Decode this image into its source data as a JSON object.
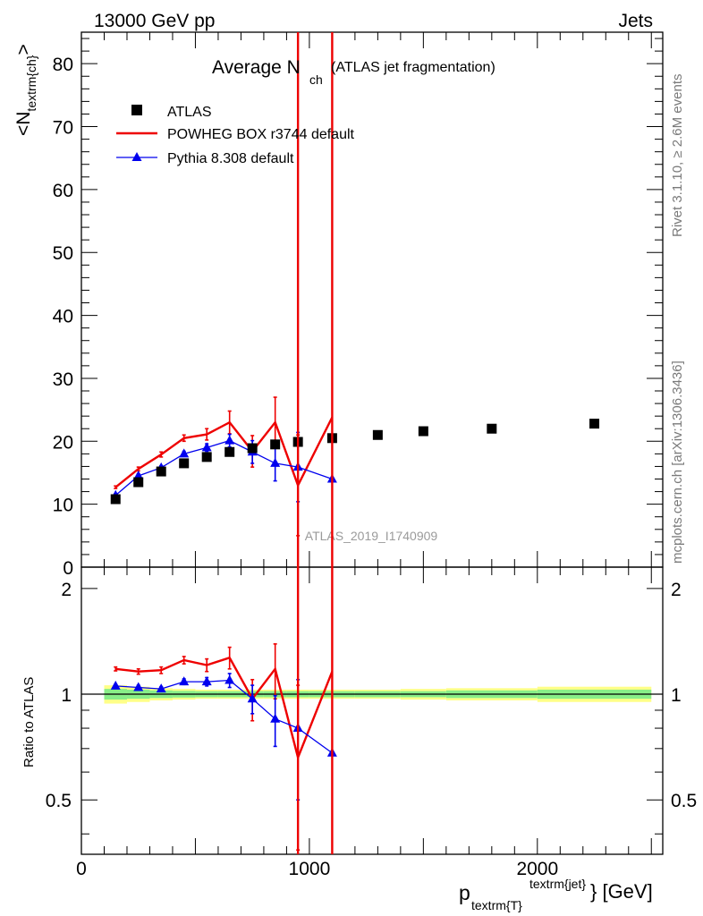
{
  "header": {
    "left": "13000 GeV pp",
    "right": "Jets"
  },
  "side_text": {
    "rivet": "Rivet 3.1.10, ≥ 2.6M events",
    "mcplots": "mcplots.cern.ch [arXiv:1306.3436]"
  },
  "watermark": "ATLAS_2019_I1740909",
  "chart_data": {
    "type": "scatter",
    "title_main": "Average N",
    "title_sub": "ch",
    "title_paren": "(ATLAS jet fragmentation)",
    "ylabel_main": "<N",
    "ylabel_sub": "textrm{ch}",
    "ylabel_close": ">",
    "ratio_ylabel": "Ratio to ATLAS",
    "xlabel_main": "p",
    "xlabel_sub": "textrm{T}",
    "xlabel_sup": "textrm{jet}",
    "xlabel_unit": "} [GeV]",
    "xlim": [
      0,
      2550
    ],
    "ylim": [
      0,
      85
    ],
    "ratio_ylim": [
      0.35,
      2.3
    ],
    "x_ticks": [
      0,
      1000,
      2000
    ],
    "x_tick_labels": [
      "0",
      "1000",
      "2000"
    ],
    "y_ticks": [
      0,
      10,
      20,
      30,
      40,
      50,
      60,
      70,
      80
    ],
    "y_tick_labels": [
      "0",
      "10",
      "20",
      "30",
      "40",
      "50",
      "60",
      "70",
      "80"
    ],
    "ratio_ticks": [
      0.5,
      1,
      2
    ],
    "ratio_tick_labels": [
      "0.5",
      "1",
      "2"
    ],
    "legend_position": "top-left",
    "series": [
      {
        "name": "ATLAS",
        "color": "#000000",
        "marker": "square",
        "x": [
          150,
          250,
          350,
          450,
          550,
          650,
          750,
          850,
          950,
          1100,
          1300,
          1500,
          1800,
          2250
        ],
        "y": [
          10.8,
          13.5,
          15.2,
          16.5,
          17.5,
          18.3,
          18.9,
          19.5,
          19.9,
          20.5,
          21.0,
          21.6,
          22.0,
          22.8
        ],
        "bin_low": [
          100,
          200,
          300,
          400,
          500,
          600,
          700,
          800,
          900,
          1000,
          1200,
          1400,
          1600,
          2000
        ],
        "bin_high": [
          200,
          300,
          400,
          500,
          600,
          700,
          800,
          900,
          1000,
          1200,
          1400,
          1600,
          2000,
          2500
        ],
        "ratio_band_inner": [
          0.035,
          0.03,
          0.025,
          0.022,
          0.02,
          0.02,
          0.02,
          0.02,
          0.02,
          0.02,
          0.02,
          0.02,
          0.025,
          0.03
        ],
        "ratio_band_outer": [
          0.06,
          0.05,
          0.04,
          0.035,
          0.03,
          0.03,
          0.03,
          0.03,
          0.03,
          0.03,
          0.03,
          0.035,
          0.04,
          0.05
        ]
      },
      {
        "name": "POWHEG BOX r3744 default",
        "color": "#ee0000",
        "marker": "line",
        "x": [
          150,
          250,
          350,
          450,
          550,
          650,
          750,
          850,
          950,
          1100
        ],
        "y": [
          12.7,
          15.6,
          17.9,
          20.5,
          21.1,
          23.0,
          18.4,
          23.0,
          13.0,
          23.8
        ],
        "err": [
          0.2,
          0.3,
          0.4,
          0.5,
          0.9,
          1.8,
          2.5,
          4.0,
          8.0,
          0
        ],
        "ratio": [
          1.18,
          1.16,
          1.17,
          1.25,
          1.21,
          1.27,
          0.97,
          1.18,
          0.66,
          1.16
        ],
        "ratio_err": [
          0.015,
          0.02,
          0.025,
          0.03,
          0.05,
          0.09,
          0.13,
          0.21,
          0.4,
          0
        ]
      },
      {
        "name": "Pythia 8.308 default",
        "color": "#0000ee",
        "marker": "triangle",
        "x": [
          150,
          250,
          350,
          450,
          550,
          650,
          750,
          850,
          950,
          1100
        ],
        "y": [
          11.4,
          14.5,
          15.8,
          18.0,
          19.0,
          20.1,
          18.3,
          16.5,
          15.9,
          14.0
        ],
        "err": [
          0.2,
          0.3,
          0.3,
          0.4,
          0.6,
          1.0,
          1.8,
          2.8,
          5.5,
          0
        ],
        "ratio": [
          1.055,
          1.045,
          1.035,
          1.085,
          1.085,
          1.095,
          0.97,
          0.85,
          0.8,
          0.68
        ],
        "ratio_err": [
          0.01,
          0.015,
          0.015,
          0.02,
          0.03,
          0.05,
          0.09,
          0.14,
          0.3,
          0
        ]
      }
    ],
    "vertical_lines": {
      "color": "#ee0000",
      "x": [
        950,
        1100
      ]
    }
  }
}
